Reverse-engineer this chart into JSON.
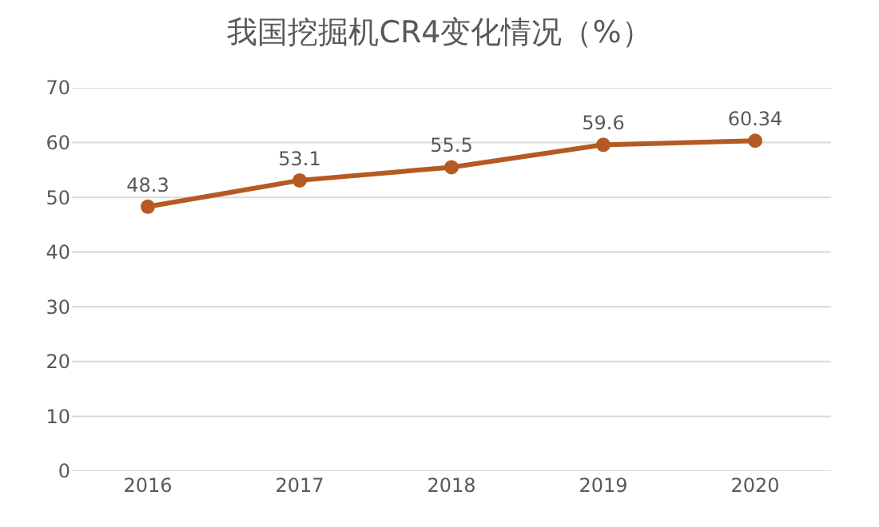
{
  "chart_data": {
    "type": "line",
    "title": "我国挖掘机CR4变化情况（%）",
    "categories": [
      "2016",
      "2017",
      "2018",
      "2019",
      "2020"
    ],
    "values": [
      48.3,
      53.1,
      55.5,
      59.6,
      60.34
    ],
    "color": "#b55a22",
    "ylim": [
      0,
      70
    ],
    "yticks": [
      0,
      10,
      20,
      30,
      40,
      50,
      60,
      70
    ],
    "grid": "y",
    "marker": "circle",
    "line_style": "solid",
    "data_labels": true
  }
}
